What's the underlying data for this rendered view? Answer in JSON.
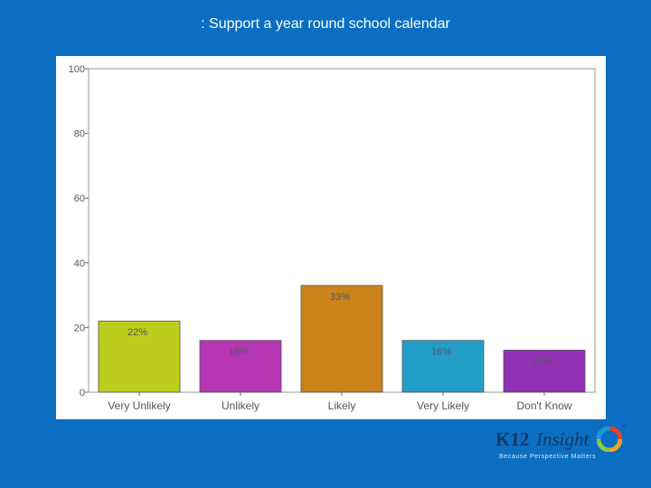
{
  "slide": {
    "title": ": Support a year round school calendar"
  },
  "logo": {
    "brand_k12": "K12",
    "brand_insight": "Insight",
    "trademark": "™",
    "tagline": "Because Perspective Matters",
    "ring_colors": [
      "#e8412c",
      "#f6a21c",
      "#8dc63f",
      "#1e9ad6"
    ]
  },
  "chart_data": {
    "type": "bar",
    "categories": [
      "Very Unlikely",
      "Unlikely",
      "Likely",
      "Very Likely",
      "Don't Know"
    ],
    "values": [
      22,
      16,
      33,
      16,
      13
    ],
    "labels": [
      "22%",
      "16%",
      "33%",
      "16%",
      "13%"
    ],
    "colors": [
      "#bccd1b",
      "#b535b3",
      "#ca821b",
      "#239ec9",
      "#9130b4"
    ],
    "title": "",
    "xlabel": "",
    "ylabel": "",
    "ylim": [
      0,
      100
    ],
    "yticks": [
      0,
      20,
      40,
      60,
      80,
      100
    ],
    "grid": false,
    "legend": "none"
  }
}
